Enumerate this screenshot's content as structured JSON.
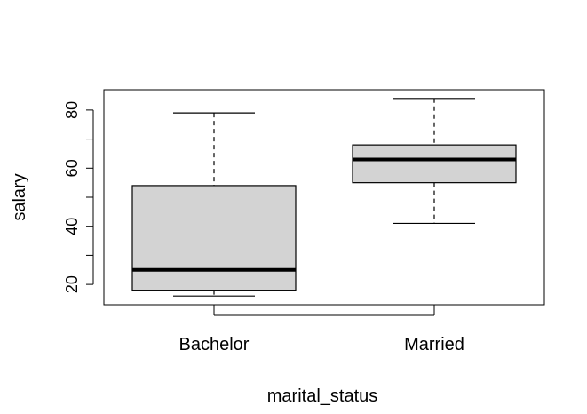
{
  "chart_data": {
    "type": "boxplot",
    "title": "",
    "xlabel": "marital_status",
    "ylabel": "salary",
    "ylim": [
      13,
      87
    ],
    "y_ticks": [
      20,
      30,
      40,
      50,
      60,
      70,
      80
    ],
    "y_tick_labels": [
      "20",
      "",
      "40",
      "",
      "60",
      "",
      "80"
    ],
    "categories": [
      "Bachelor",
      "Married"
    ],
    "boxes": [
      {
        "category": "Bachelor",
        "min": 16,
        "q1": 18,
        "median": 25,
        "q3": 54,
        "max": 79
      },
      {
        "category": "Married",
        "min": 41,
        "q1": 55,
        "median": 63,
        "q3": 68,
        "max": 84
      }
    ],
    "box_fill": "#d3d3d3",
    "grid": false,
    "legend": "none"
  }
}
